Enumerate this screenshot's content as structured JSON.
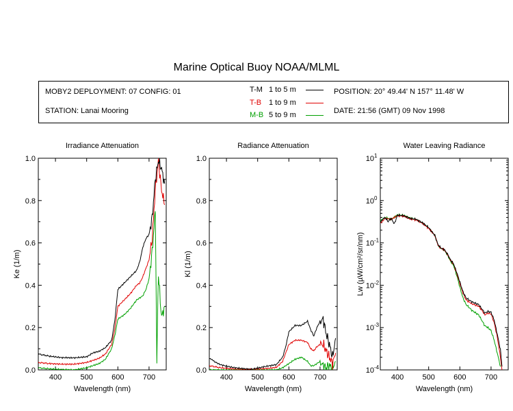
{
  "title": "Marine Optical Buoy NOAA/MLML",
  "info": {
    "deployment": "MOBY2 DEPLOYMENT: 07 CONFIG: 01",
    "station": "STATION: Lanai Mooring",
    "position": "POSITION: 20° 49.44' N   157° 11.48' W",
    "date": "DATE: 21:56 (GMT) 09 Nov 1998",
    "legend": [
      {
        "name": "T-M",
        "range": "1 to 5  m",
        "color": "#000000"
      },
      {
        "name": "T-B",
        "range": "1 to 9  m",
        "color": "#e00000"
      },
      {
        "name": "M-B",
        "range": "5 to 9  m",
        "color": "#00a000"
      }
    ]
  },
  "chart_data": [
    {
      "type": "line",
      "title": "Irradiance Attenuation",
      "xlabel": "Wavelength (nm)",
      "ylabel": "Ke  (1/m)",
      "xlim": [
        345,
        755
      ],
      "ylim": [
        0,
        1.0
      ],
      "xticks": [
        400,
        500,
        600,
        700
      ],
      "yticks": [
        "0.0",
        "0.2",
        "0.4",
        "0.6",
        "0.8",
        "1.0"
      ],
      "series": [
        {
          "name": "T-M",
          "color": "#000000",
          "points": [
            [
              345,
              0.075
            ],
            [
              380,
              0.065
            ],
            [
              420,
              0.058
            ],
            [
              460,
              0.057
            ],
            [
              500,
              0.062
            ],
            [
              520,
              0.08
            ],
            [
              540,
              0.088
            ],
            [
              560,
              0.105
            ],
            [
              580,
              0.14
            ],
            [
              590,
              0.23
            ],
            [
              600,
              0.38
            ],
            [
              620,
              0.41
            ],
            [
              640,
              0.44
            ],
            [
              660,
              0.47
            ],
            [
              670,
              0.51
            ],
            [
              680,
              0.58
            ],
            [
              690,
              0.62
            ],
            [
              700,
              0.64
            ],
            [
              710,
              0.72
            ],
            [
              720,
              0.9
            ],
            [
              730,
              0.99
            ],
            [
              740,
              0.95
            ],
            [
              750,
              0.88
            ]
          ]
        },
        {
          "name": "T-B",
          "color": "#e00000",
          "points": [
            [
              345,
              0.035
            ],
            [
              380,
              0.03
            ],
            [
              420,
              0.027
            ],
            [
              460,
              0.027
            ],
            [
              500,
              0.035
            ],
            [
              520,
              0.045
            ],
            [
              540,
              0.055
            ],
            [
              560,
              0.075
            ],
            [
              580,
              0.12
            ],
            [
              590,
              0.19
            ],
            [
              600,
              0.3
            ],
            [
              620,
              0.33
            ],
            [
              640,
              0.36
            ],
            [
              660,
              0.4
            ],
            [
              670,
              0.41
            ],
            [
              680,
              0.44
            ],
            [
              690,
              0.48
            ],
            [
              700,
              0.52
            ],
            [
              710,
              0.62
            ],
            [
              720,
              0.85
            ],
            [
              730,
              0.99
            ],
            [
              740,
              0.85
            ],
            [
              750,
              0.78
            ]
          ]
        },
        {
          "name": "M-B",
          "color": "#00a000",
          "points": [
            [
              345,
              0.01
            ],
            [
              380,
              0.005
            ],
            [
              420,
              0.002
            ],
            [
              460,
              0.0
            ],
            [
              500,
              0.01
            ],
            [
              520,
              0.02
            ],
            [
              540,
              0.03
            ],
            [
              560,
              0.05
            ],
            [
              580,
              0.1
            ],
            [
              590,
              0.16
            ],
            [
              600,
              0.24
            ],
            [
              620,
              0.26
            ],
            [
              640,
              0.29
            ],
            [
              660,
              0.33
            ],
            [
              670,
              0.34
            ],
            [
              680,
              0.35
            ],
            [
              690,
              0.38
            ],
            [
              700,
              0.43
            ],
            [
              710,
              0.56
            ],
            [
              720,
              0.75
            ],
            [
              725,
              0.05
            ],
            [
              730,
              0.45
            ],
            [
              740,
              0.25
            ],
            [
              750,
              0.3
            ]
          ]
        }
      ]
    },
    {
      "type": "line",
      "title": "Radiance Attenuation",
      "xlabel": "Wavelength (nm)",
      "ylabel": "Kl  (1/m)",
      "xlim": [
        345,
        755
      ],
      "ylim": [
        0,
        1.0
      ],
      "xticks": [
        400,
        500,
        600,
        700
      ],
      "yticks": [
        "0.0",
        "0.2",
        "0.4",
        "0.6",
        "0.8",
        "1.0"
      ],
      "series": [
        {
          "name": "T-M",
          "color": "#000000",
          "points": [
            [
              345,
              0.055
            ],
            [
              360,
              0.04
            ],
            [
              380,
              0.025
            ],
            [
              400,
              0.018
            ],
            [
              420,
              0.012
            ],
            [
              440,
              0.008
            ],
            [
              460,
              0.005
            ],
            [
              480,
              0.003
            ],
            [
              500,
              0.008
            ],
            [
              520,
              0.015
            ],
            [
              540,
              0.02
            ],
            [
              560,
              0.025
            ],
            [
              580,
              0.06
            ],
            [
              590,
              0.11
            ],
            [
              600,
              0.18
            ],
            [
              620,
              0.21
            ],
            [
              640,
              0.21
            ],
            [
              660,
              0.23
            ],
            [
              670,
              0.19
            ],
            [
              680,
              0.16
            ],
            [
              690,
              0.2
            ],
            [
              700,
              0.23
            ],
            [
              710,
              0.24
            ],
            [
              720,
              0.17
            ],
            [
              730,
              0.12
            ],
            [
              740,
              0.06
            ],
            [
              750,
              0.15
            ]
          ]
        },
        {
          "name": "T-B",
          "color": "#e00000",
          "points": [
            [
              345,
              0.02
            ],
            [
              380,
              0.01
            ],
            [
              420,
              0.005
            ],
            [
              460,
              0.002
            ],
            [
              500,
              0.004
            ],
            [
              540,
              0.008
            ],
            [
              560,
              0.012
            ],
            [
              580,
              0.04
            ],
            [
              590,
              0.08
            ],
            [
              600,
              0.12
            ],
            [
              620,
              0.14
            ],
            [
              640,
              0.14
            ],
            [
              660,
              0.13
            ],
            [
              670,
              0.1
            ],
            [
              680,
              0.09
            ],
            [
              690,
              0.11
            ],
            [
              700,
              0.12
            ],
            [
              710,
              0.12
            ],
            [
              720,
              0.09
            ],
            [
              730,
              0.06
            ],
            [
              740,
              0.03
            ],
            [
              750,
              0.08
            ]
          ]
        },
        {
          "name": "M-B",
          "color": "#00a000",
          "points": [
            [
              345,
              0.0
            ],
            [
              380,
              0.0
            ],
            [
              420,
              0.0
            ],
            [
              460,
              0.0
            ],
            [
              500,
              0.0
            ],
            [
              540,
              0.0
            ],
            [
              560,
              0.0
            ],
            [
              580,
              0.01
            ],
            [
              600,
              0.03
            ],
            [
              620,
              0.05
            ],
            [
              640,
              0.06
            ],
            [
              660,
              0.04
            ],
            [
              670,
              0.02
            ],
            [
              680,
              0.02
            ],
            [
              700,
              0.04
            ],
            [
              710,
              0.02
            ],
            [
              720,
              0.01
            ],
            [
              730,
              0.02
            ],
            [
              740,
              0.01
            ],
            [
              750,
              0.04
            ]
          ]
        }
      ]
    },
    {
      "type": "line",
      "title": "Water Leaving Radiance",
      "xlabel": "Wavelength (nm)",
      "ylabel": "Lw  (µW/cm²/sr/nm)",
      "xlim": [
        345,
        755
      ],
      "ylim": [
        0.0001,
        10
      ],
      "yscale": "log",
      "xticks": [
        400,
        500,
        600,
        700
      ],
      "ytick_exponents": [
        1,
        0,
        -1,
        -2,
        -3,
        -4
      ],
      "series": [
        {
          "name": "T-M",
          "color": "#000000",
          "points": [
            [
              345,
              0.3
            ],
            [
              360,
              0.4
            ],
            [
              370,
              0.32
            ],
            [
              380,
              0.38
            ],
            [
              390,
              0.28
            ],
            [
              400,
              0.45
            ],
            [
              420,
              0.44
            ],
            [
              440,
              0.38
            ],
            [
              460,
              0.36
            ],
            [
              480,
              0.3
            ],
            [
              500,
              0.23
            ],
            [
              520,
              0.15
            ],
            [
              530,
              0.09
            ],
            [
              540,
              0.075
            ],
            [
              550,
              0.07
            ],
            [
              560,
              0.055
            ],
            [
              570,
              0.04
            ],
            [
              580,
              0.032
            ],
            [
              590,
              0.02
            ],
            [
              600,
              0.012
            ],
            [
              610,
              0.007
            ],
            [
              620,
              0.005
            ],
            [
              640,
              0.004
            ],
            [
              660,
              0.0035
            ],
            [
              670,
              0.0028
            ],
            [
              680,
              0.0022
            ],
            [
              690,
              0.0024
            ],
            [
              700,
              0.0023
            ],
            [
              710,
              0.0015
            ],
            [
              720,
              0.0007
            ],
            [
              730,
              0.0003
            ],
            [
              735,
              0.00012
            ]
          ]
        },
        {
          "name": "T-B",
          "color": "#e00000",
          "points": [
            [
              345,
              0.3
            ],
            [
              360,
              0.38
            ],
            [
              380,
              0.36
            ],
            [
              400,
              0.44
            ],
            [
              420,
              0.43
            ],
            [
              440,
              0.37
            ],
            [
              460,
              0.35
            ],
            [
              480,
              0.29
            ],
            [
              500,
              0.22
            ],
            [
              520,
              0.15
            ],
            [
              530,
              0.088
            ],
            [
              540,
              0.074
            ],
            [
              550,
              0.069
            ],
            [
              560,
              0.054
            ],
            [
              570,
              0.039
            ],
            [
              580,
              0.031
            ],
            [
              590,
              0.019
            ],
            [
              600,
              0.011
            ],
            [
              610,
              0.0065
            ],
            [
              620,
              0.0045
            ],
            [
              640,
              0.0036
            ],
            [
              660,
              0.0032
            ],
            [
              670,
              0.0026
            ],
            [
              680,
              0.002
            ],
            [
              690,
              0.0022
            ],
            [
              700,
              0.0021
            ],
            [
              710,
              0.0013
            ],
            [
              720,
              0.0006
            ],
            [
              730,
              0.0002
            ],
            [
              735,
              0.0001
            ]
          ]
        },
        {
          "name": "M-B",
          "color": "#00a000",
          "points": [
            [
              345,
              0.32
            ],
            [
              360,
              0.4
            ],
            [
              380,
              0.36
            ],
            [
              400,
              0.46
            ],
            [
              420,
              0.45
            ],
            [
              440,
              0.39
            ],
            [
              460,
              0.36
            ],
            [
              480,
              0.3
            ],
            [
              500,
              0.23
            ],
            [
              520,
              0.15
            ],
            [
              530,
              0.088
            ],
            [
              540,
              0.074
            ],
            [
              550,
              0.068
            ],
            [
              560,
              0.052
            ],
            [
              570,
              0.037
            ],
            [
              580,
              0.029
            ],
            [
              590,
              0.017
            ],
            [
              600,
              0.009
            ],
            [
              610,
              0.005
            ],
            [
              620,
              0.0035
            ],
            [
              640,
              0.0025
            ],
            [
              660,
              0.002
            ],
            [
              670,
              0.0015
            ],
            [
              680,
              0.0011
            ],
            [
              690,
              0.001
            ],
            [
              700,
              0.00085
            ],
            [
              710,
              0.0005
            ],
            [
              720,
              0.00025
            ],
            [
              730,
              0.00012
            ]
          ]
        }
      ]
    }
  ]
}
